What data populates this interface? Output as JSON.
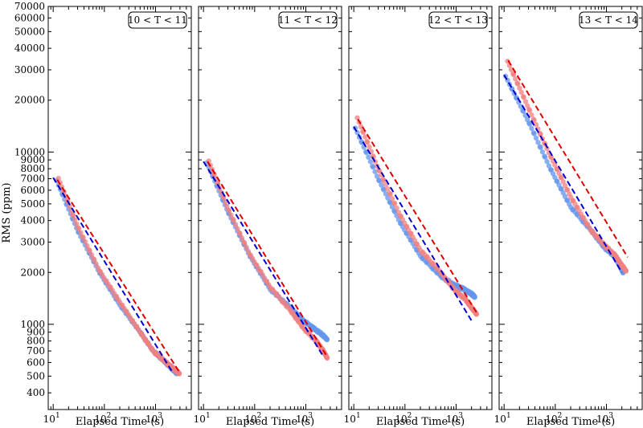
{
  "chart_data": [
    {
      "type": "scatter",
      "panel_label": "10 < T < 11",
      "xlabel": "Elapsed Time (s)",
      "ylabel": "RMS (ppm)",
      "xscale": "log",
      "yscale": "log",
      "xlim": [
        8,
        5000
      ],
      "ylim": [
        320,
        70000
      ],
      "series": [
        {
          "color": "#6495ed",
          "points": [
            [
              12,
              6700
            ],
            [
              30,
              3500
            ],
            [
              80,
              2000
            ],
            [
              200,
              1300
            ],
            [
              500,
              900
            ],
            [
              900,
              700
            ],
            [
              1400,
              620
            ],
            [
              2000,
              560
            ],
            [
              2600,
              520
            ]
          ]
        },
        {
          "color": "#f08080",
          "points": [
            [
              13,
              6900
            ],
            [
              30,
              3700
            ],
            [
              80,
              2050
            ],
            [
              200,
              1350
            ],
            [
              500,
              900
            ],
            [
              900,
              700
            ],
            [
              1600,
              600
            ],
            [
              2300,
              550
            ],
            [
              2900,
              520
            ]
          ]
        }
      ],
      "fits": [
        {
          "color": "#0000cc",
          "from": [
            10,
            7100
          ],
          "to": [
            2200,
            520
          ]
        },
        {
          "color": "#dd0000",
          "from": [
            12,
            6900
          ],
          "to": [
            2900,
            530
          ]
        }
      ]
    },
    {
      "type": "scatter",
      "panel_label": "11 < T < 12",
      "xlabel": "Elapsed Time (s)",
      "xscale": "log",
      "yscale": "log",
      "xlim": [
        8,
        5000
      ],
      "ylim": [
        320,
        70000
      ],
      "series": [
        {
          "color": "#6495ed",
          "points": [
            [
              12,
              8500
            ],
            [
              30,
              4500
            ],
            [
              80,
              2500
            ],
            [
              200,
              1600
            ],
            [
              500,
              1250
            ],
            [
              900,
              1050
            ],
            [
              1400,
              950
            ],
            [
              2000,
              880
            ],
            [
              2600,
              820
            ]
          ]
        },
        {
          "color": "#f08080",
          "points": [
            [
              13,
              8700
            ],
            [
              30,
              4700
            ],
            [
              80,
              2550
            ],
            [
              200,
              1650
            ],
            [
              500,
              1200
            ],
            [
              900,
              950
            ],
            [
              1600,
              800
            ],
            [
              2200,
              700
            ],
            [
              2600,
              640
            ]
          ]
        }
      ],
      "fits": [
        {
          "color": "#0000cc",
          "from": [
            10,
            8800
          ],
          "to": [
            2200,
            650
          ]
        },
        {
          "color": "#dd0000",
          "from": [
            12,
            8800
          ],
          "to": [
            2600,
            650
          ]
        }
      ]
    },
    {
      "type": "scatter",
      "panel_label": "12 < T < 13",
      "xlabel": "Elapsed Time (s)",
      "xscale": "log",
      "yscale": "log",
      "xlim": [
        8,
        5000
      ],
      "ylim": [
        320,
        70000
      ],
      "series": [
        {
          "color": "#6495ed",
          "points": [
            [
              11,
              13500
            ],
            [
              30,
              7000
            ],
            [
              80,
              3900
            ],
            [
              200,
              2500
            ],
            [
              500,
              1900
            ],
            [
              900,
              1700
            ],
            [
              1400,
              1600
            ],
            [
              2000,
              1500
            ],
            [
              2300,
              1450
            ]
          ]
        },
        {
          "color": "#f08080",
          "points": [
            [
              12,
              15500
            ],
            [
              30,
              8000
            ],
            [
              80,
              4300
            ],
            [
              200,
              2700
            ],
            [
              500,
              2000
            ],
            [
              900,
              1600
            ],
            [
              1500,
              1400
            ],
            [
              2000,
              1250
            ],
            [
              2500,
              1150
            ]
          ]
        }
      ],
      "fits": [
        {
          "color": "#0000cc",
          "from": [
            10,
            14000
          ],
          "to": [
            2000,
            1050
          ]
        },
        {
          "color": "#dd0000",
          "from": [
            12,
            15500
          ],
          "to": [
            2600,
            1150
          ]
        }
      ]
    },
    {
      "type": "scatter",
      "panel_label": "13 < T < 14",
      "xlabel": "Elapsed Time (s)",
      "xscale": "log",
      "yscale": "log",
      "xlim": [
        8,
        5000
      ],
      "ylim": [
        320,
        70000
      ],
      "series": [
        {
          "color": "#6495ed",
          "points": [
            [
              11,
              27000
            ],
            [
              30,
              15000
            ],
            [
              80,
              8000
            ],
            [
              200,
              4800
            ],
            [
              500,
              3500
            ],
            [
              900,
              2800
            ],
            [
              1400,
              2500
            ],
            [
              1800,
              2200
            ],
            [
              2100,
              2000
            ]
          ]
        },
        {
          "color": "#f08080",
          "points": [
            [
              12,
              33000
            ],
            [
              30,
              18000
            ],
            [
              80,
              9500
            ],
            [
              200,
              5500
            ],
            [
              500,
              3500
            ],
            [
              900,
              2900
            ],
            [
              1500,
              2500
            ],
            [
              2000,
              2200
            ],
            [
              2400,
              2050
            ]
          ]
        }
      ],
      "fits": [
        {
          "color": "#0000cc",
          "from": [
            10,
            28000
          ],
          "to": [
            2000,
            2000
          ]
        },
        {
          "color": "#dd0000",
          "from": [
            12,
            34000
          ],
          "to": [
            2600,
            2450
          ]
        }
      ]
    }
  ],
  "y_ticks": [
    400,
    500,
    600,
    700,
    800,
    900,
    1000,
    2000,
    3000,
    4000,
    5000,
    6000,
    7000,
    8000,
    9000,
    10000,
    20000,
    30000,
    40000,
    50000,
    60000,
    70000
  ],
  "x_ticks": [
    {
      "value": 10,
      "base": "10",
      "exp": "1"
    },
    {
      "value": 100,
      "base": "10",
      "exp": "2"
    },
    {
      "value": 1000,
      "base": "10",
      "exp": "3"
    }
  ]
}
